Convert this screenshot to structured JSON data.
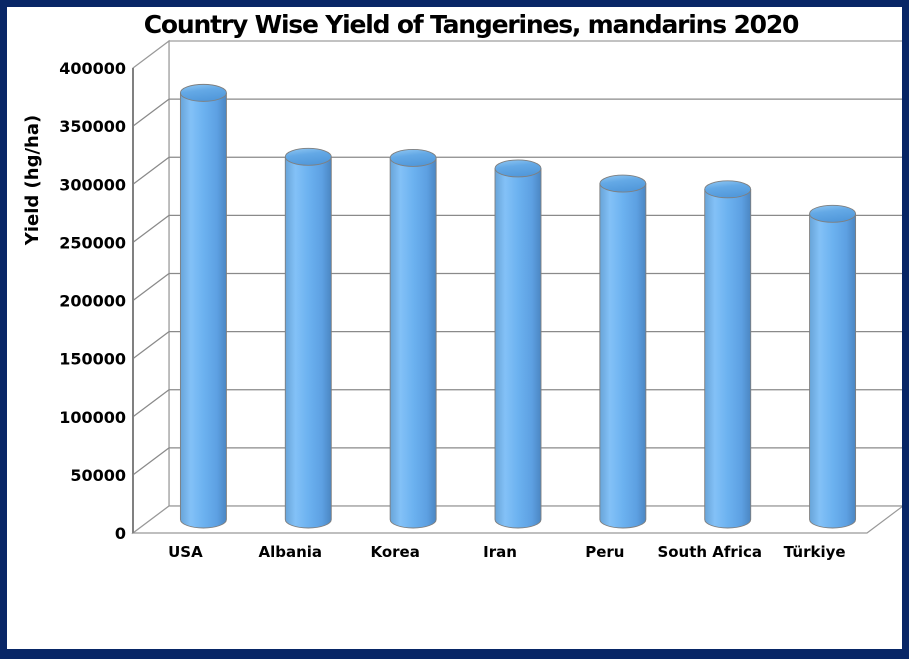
{
  "window": {
    "border_color": "#082666",
    "background_color": "#ffffff"
  },
  "chart_data": {
    "type": "bar",
    "variant": "3d-cylinder",
    "title": "Country Wise Yield of Tangerines, mandarins 2020",
    "xlabel": "",
    "ylabel": "Yield (hg/ha)",
    "categories": [
      "USA",
      "Albania",
      "Korea",
      "Iran",
      "Peru",
      "South Africa",
      "Türkiye"
    ],
    "values": [
      367000,
      312000,
      311000,
      302000,
      289000,
      284000,
      263000
    ],
    "ylim": [
      0,
      400000
    ],
    "ytick_step": 50000,
    "ytick_labels": [
      "0",
      "50000",
      "100000",
      "150000",
      "200000",
      "250000",
      "300000",
      "350000",
      "400000"
    ],
    "grid": true,
    "legend": false,
    "colors": {
      "bar_main": "#6CB2F0",
      "bar_highlight": "#83C1F7",
      "bar_shadow": "#4B86C2",
      "bar_left_edge": "#68A4D8",
      "top_rim_light": "#93C9F3",
      "top_fill": "#64A9E6",
      "gridline": "#8A8A8A",
      "wall_outline": "#999999",
      "text": "#000000"
    }
  }
}
